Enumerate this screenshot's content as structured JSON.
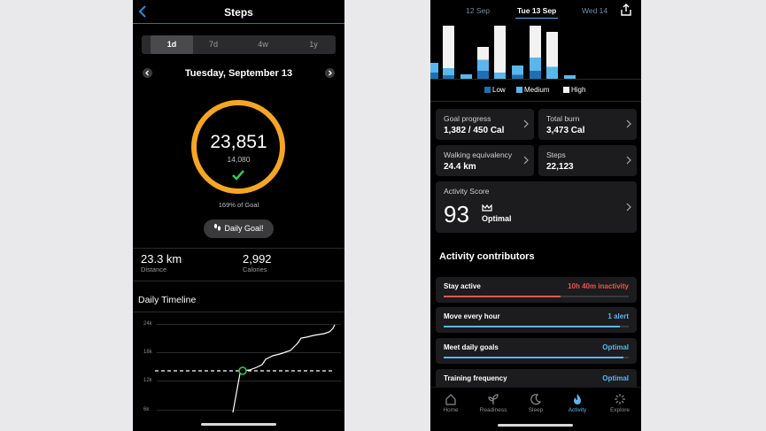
{
  "left_app": {
    "title": "Steps",
    "ranges": [
      "1d",
      "7d",
      "4w",
      "1y"
    ],
    "selected_range": "1d",
    "date": "Tuesday, September 13",
    "steps_value": "23,851",
    "goal_value": "14,080",
    "goal_percent": "169% of Goal",
    "daily_goal_button": "Daily Goal!",
    "distance_value": "23.3 km",
    "distance_label": "Distance",
    "calories_value": "2,992",
    "calories_label": "Calories",
    "timeline_title": "Daily Timeline",
    "y_ticks": [
      "24k",
      "18k",
      "12k",
      "6k"
    ],
    "colors": {
      "ring": "#f5a623",
      "check": "#34c759",
      "accent": "#2c6fb0"
    }
  },
  "right_app": {
    "dates": [
      "12 Sep",
      "Tue 13 Sep",
      "Wed 14"
    ],
    "selected_date": "Tue 13 Sep",
    "legend": [
      "Low",
      "Medium",
      "High"
    ],
    "colors": {
      "low": "#1f6fb5",
      "medium": "#5bb6ea",
      "high": "#f2f2f2",
      "stay_active": "#e8574d",
      "bar": "#5bb6ea"
    },
    "cards": {
      "goal_progress": {
        "label": "Goal progress",
        "value": "1,382 / 450 Cal"
      },
      "total_burn": {
        "label": "Total burn",
        "value": "3,473 Cal"
      },
      "walking_equivalency": {
        "label": "Walking equivalency",
        "value": "24.4 km"
      },
      "steps": {
        "label": "Steps",
        "value": "22,123"
      }
    },
    "activity_score": {
      "label": "Activity Score",
      "value": "93",
      "status": "Optimal"
    },
    "contributors_title": "Activity contributors",
    "contributors": [
      {
        "label": "Stay active",
        "value": "10h 40m inactivity",
        "level": 0.63
      },
      {
        "label": "Move every hour",
        "value": "1 alert",
        "level": 0.95
      },
      {
        "label": "Meet daily goals",
        "value": "Optimal",
        "level": 0.97
      },
      {
        "label": "Training frequency",
        "value": "Optimal",
        "level": 0.97
      }
    ],
    "tabs": [
      "Home",
      "Readiness",
      "Sleep",
      "Activity",
      "Explore"
    ],
    "active_tab": "Activity"
  }
}
